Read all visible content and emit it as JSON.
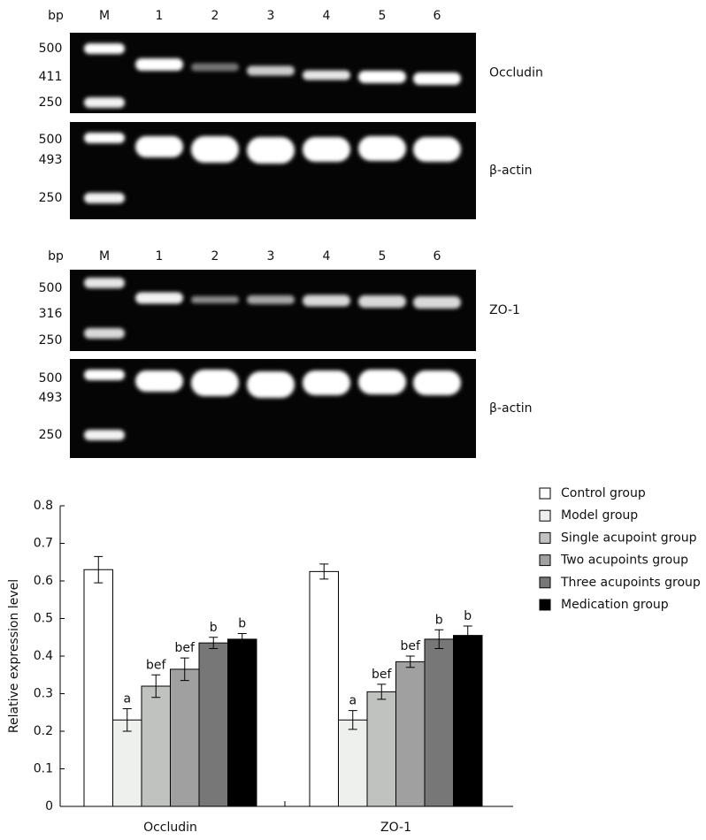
{
  "gels": [
    {
      "size_header": "bp",
      "lanes": [
        "M",
        "1",
        "2",
        "3",
        "4",
        "5",
        "6"
      ],
      "rows": [
        {
          "markers": [
            "500",
            "411",
            "250"
          ],
          "label": "Occludin"
        },
        {
          "markers": [
            "500",
            "493",
            "250"
          ],
          "label": "β-actin"
        }
      ]
    },
    {
      "size_header": "bp",
      "lanes": [
        "M",
        "1",
        "2",
        "3",
        "4",
        "5",
        "6"
      ],
      "rows": [
        {
          "markers": [
            "500",
            "316",
            "250"
          ],
          "label": "ZO-1"
        },
        {
          "markers": [
            "500",
            "493",
            "250"
          ],
          "label": "β-actin"
        }
      ]
    }
  ],
  "chart_data": {
    "type": "bar",
    "y_label": "Relative expression level",
    "categories": [
      "Occludin",
      "ZO-1"
    ],
    "ylim": [
      0,
      0.8
    ],
    "yticks": [
      0,
      0.1,
      0.2,
      0.3,
      0.4,
      0.5,
      0.6,
      0.7,
      0.8
    ],
    "legend": "right",
    "series": [
      {
        "name": "Control group",
        "color": "#ffffff",
        "values": [
          0.63,
          0.625
        ],
        "errors": [
          0.035,
          0.02
        ]
      },
      {
        "name": "Model group",
        "color": "#eef0ee",
        "values": [
          0.23,
          0.23
        ],
        "errors": [
          0.03,
          0.025
        ],
        "annotations": [
          "a",
          "a"
        ]
      },
      {
        "name": "Single acupoint group",
        "color": "#c0c2c0",
        "values": [
          0.32,
          0.305
        ],
        "errors": [
          0.03,
          0.02
        ],
        "annotations": [
          "bef",
          "bef"
        ]
      },
      {
        "name": "Two acupoints group",
        "color": "#a0a0a0",
        "values": [
          0.365,
          0.385
        ],
        "errors": [
          0.03,
          0.015
        ],
        "annotations": [
          "bef",
          "bef"
        ]
      },
      {
        "name": "Three acupoints group",
        "color": "#777777",
        "values": [
          0.435,
          0.445
        ],
        "errors": [
          0.015,
          0.025
        ],
        "annotations": [
          "b",
          "b"
        ]
      },
      {
        "name": "Medication group",
        "color": "#000000",
        "values": [
          0.445,
          0.455
        ],
        "errors": [
          0.015,
          0.025
        ],
        "annotations": [
          "b",
          "b"
        ]
      }
    ]
  }
}
